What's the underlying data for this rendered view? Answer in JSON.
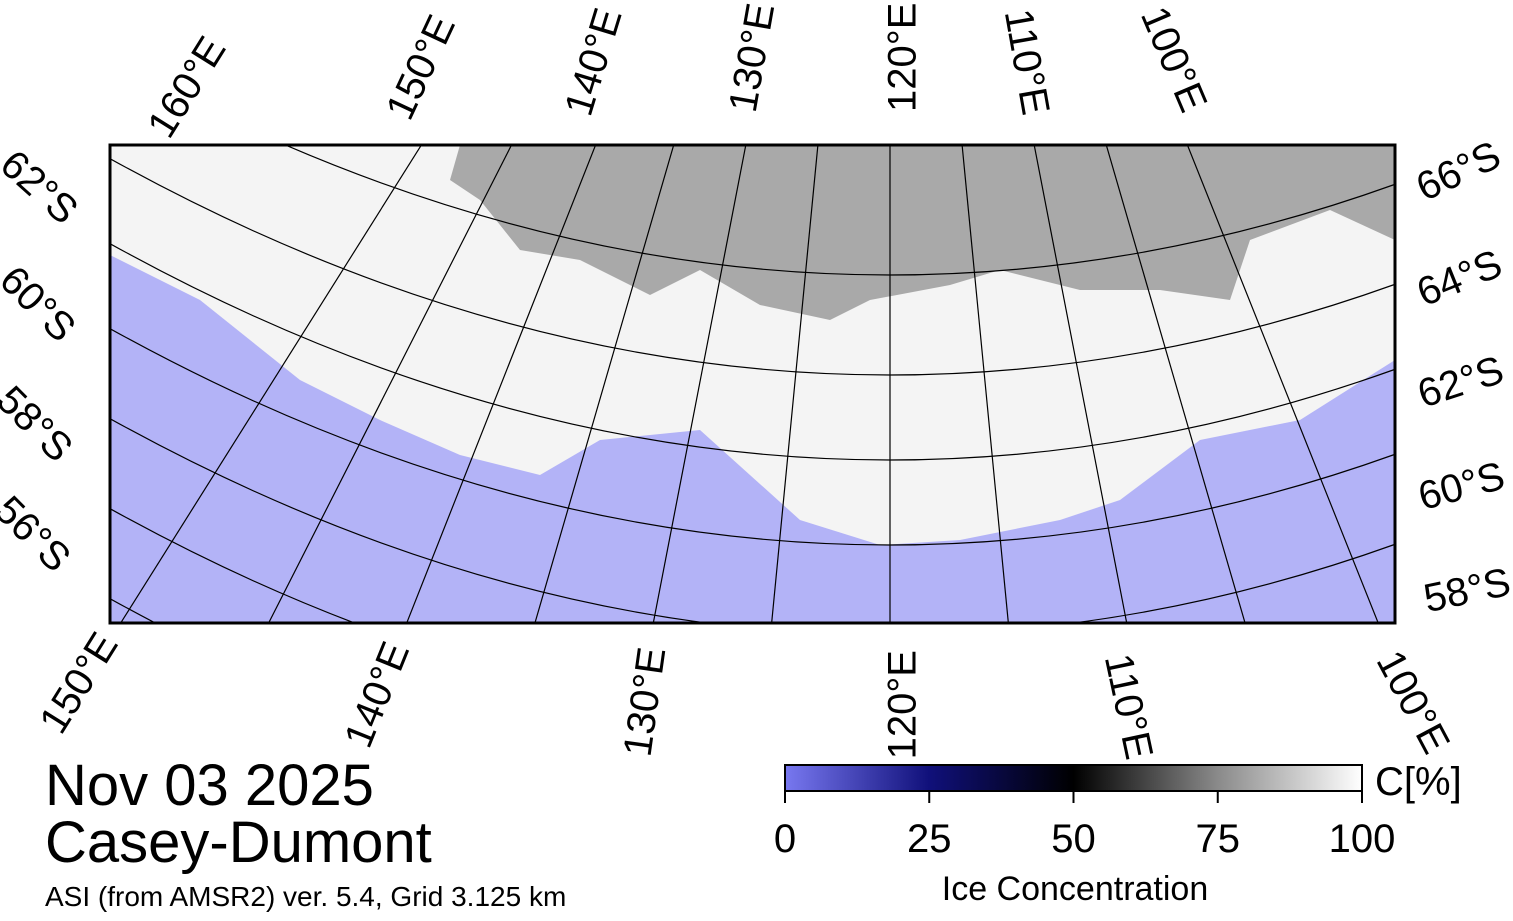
{
  "map": {
    "top_lon_labels": [
      "160°E",
      "150°E",
      "140°E",
      "130°E",
      "120°E",
      "110°E",
      "100°E"
    ],
    "left_lat_labels": [
      "62°S",
      "60°S",
      "58°S",
      "56°S"
    ],
    "right_lat_labels": [
      "66°S",
      "64°S",
      "62°S",
      "60°S",
      "58°S"
    ],
    "bottom_lon_labels": [
      "150°E",
      "140°E",
      "130°E",
      "120°E",
      "110°E",
      "100°E"
    ]
  },
  "date": "Nov 03 2025",
  "region": "Casey-Dumont",
  "product": "ASI (from AMSR2) ver. 5.4,  Grid 3.125 km",
  "colorbar": {
    "label": "Ice Concentration",
    "unit": "C[%]",
    "lim": [
      0,
      100
    ],
    "ticks": [
      0,
      25,
      50,
      75,
      100
    ]
  }
}
